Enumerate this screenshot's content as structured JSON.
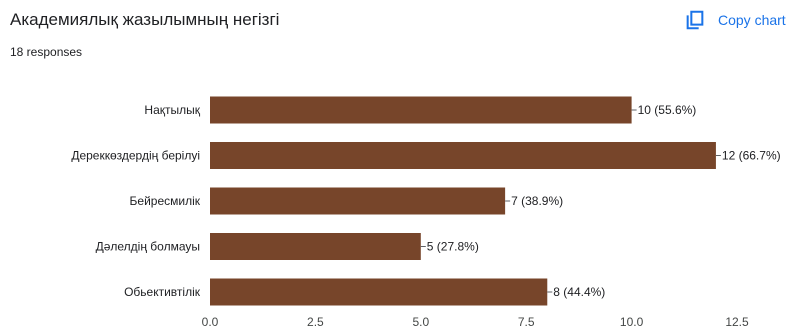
{
  "header": {
    "title": "Академиялық жазылымның негізгі",
    "responses": "18 responses",
    "copy_label": "Copy chart",
    "copy_icon": "copy-icon",
    "accent_color": "#1a73e8"
  },
  "chart_data": {
    "type": "bar",
    "orientation": "horizontal",
    "categories": [
      "Нақтылық",
      "Дереккөздердің берілуі",
      "Бейресмилік",
      "Дәлелдің болмауы",
      "Обьективтілік"
    ],
    "values": [
      10,
      12,
      7,
      5,
      8
    ],
    "data_labels": [
      "10 (55.6%)",
      "12 (66.7%)",
      "7 (38.9%)",
      "5 (27.8%)",
      "8 (44.4%)"
    ],
    "xlim": [
      0,
      12.5
    ],
    "xticks": [
      0,
      2.5,
      5,
      7.5,
      10,
      12.5
    ],
    "xtick_labels": [
      "0.0",
      "2.5",
      "5.0",
      "7.5",
      "10.0",
      "12.5"
    ],
    "bar_color": "#77452a",
    "grid": false,
    "legend": "none"
  }
}
